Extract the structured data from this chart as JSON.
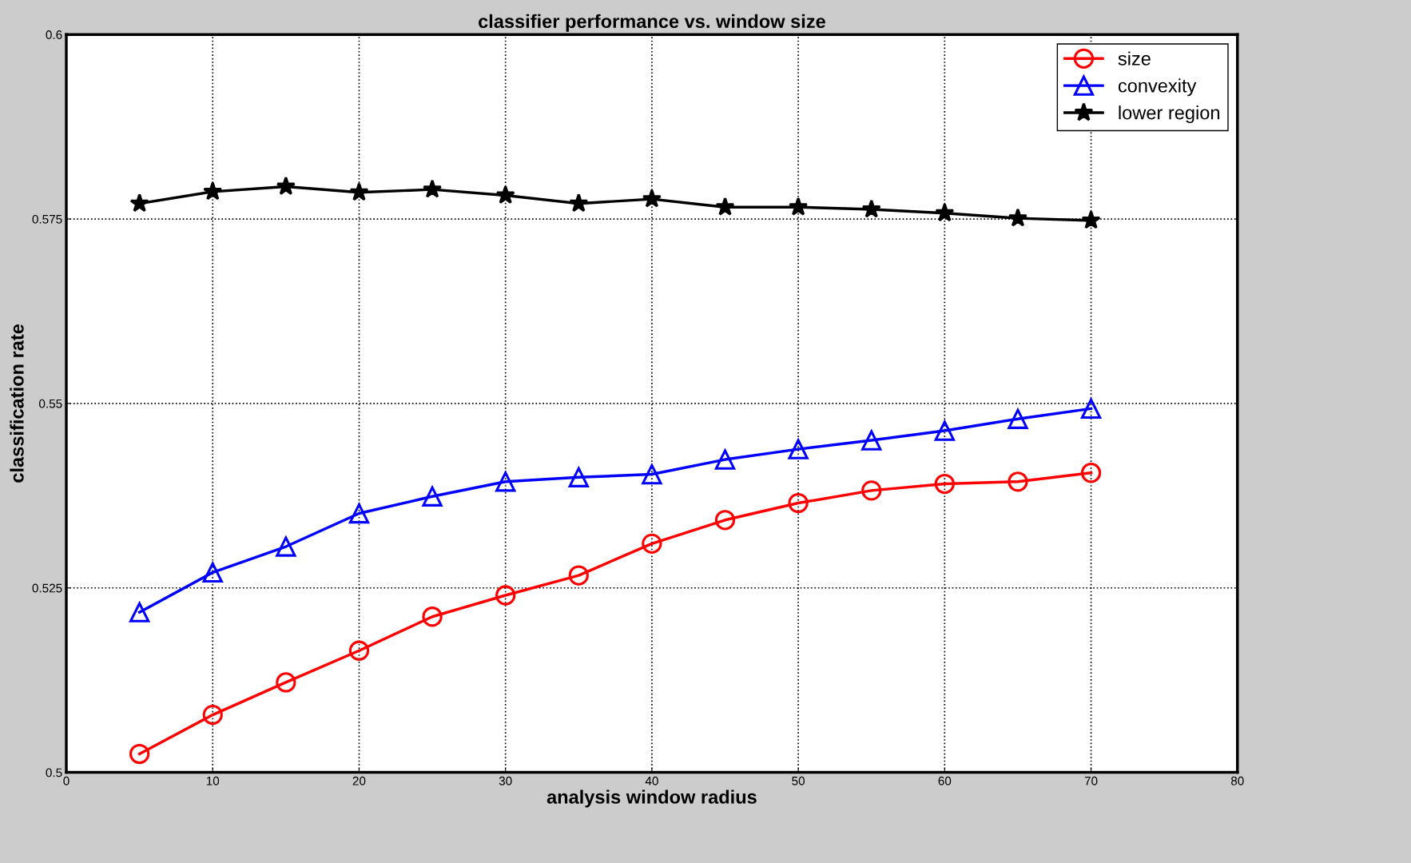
{
  "chart_data": {
    "type": "line",
    "title": "classifier performance vs. window size",
    "xlabel": "analysis window radius",
    "ylabel": "classification rate",
    "x": [
      5,
      10,
      15,
      20,
      25,
      30,
      35,
      40,
      45,
      50,
      55,
      60,
      65,
      70
    ],
    "series": [
      {
        "name": "size",
        "color": "#ff0000",
        "marker": "circle",
        "values": [
          0.5025,
          0.5078,
          0.5122,
          0.5165,
          0.5211,
          0.524,
          0.5267,
          0.531,
          0.5342,
          0.5365,
          0.5382,
          0.5391,
          0.5394,
          0.5406
        ]
      },
      {
        "name": "convexity",
        "color": "#0000ff",
        "marker": "triangle",
        "values": [
          0.5217,
          0.5271,
          0.5306,
          0.5351,
          0.5374,
          0.5394,
          0.54,
          0.5404,
          0.5424,
          0.5438,
          0.545,
          0.5463,
          0.5479,
          0.5493
        ]
      },
      {
        "name": "lower region",
        "color": "#000000",
        "marker": "star",
        "values": [
          0.5771,
          0.5787,
          0.5794,
          0.5786,
          0.579,
          0.5782,
          0.5771,
          0.5777,
          0.5766,
          0.5766,
          0.5763,
          0.5758,
          0.5751,
          0.5748
        ]
      }
    ],
    "xlim": [
      0,
      80
    ],
    "xticks": [
      0,
      10,
      20,
      30,
      40,
      50,
      60,
      70,
      80
    ],
    "ylim": [
      0.5,
      0.6
    ],
    "yticks": [
      0.5,
      0.525,
      0.55,
      0.575,
      0.6
    ],
    "grid": true,
    "legend": "top right",
    "line_style": "solid"
  }
}
